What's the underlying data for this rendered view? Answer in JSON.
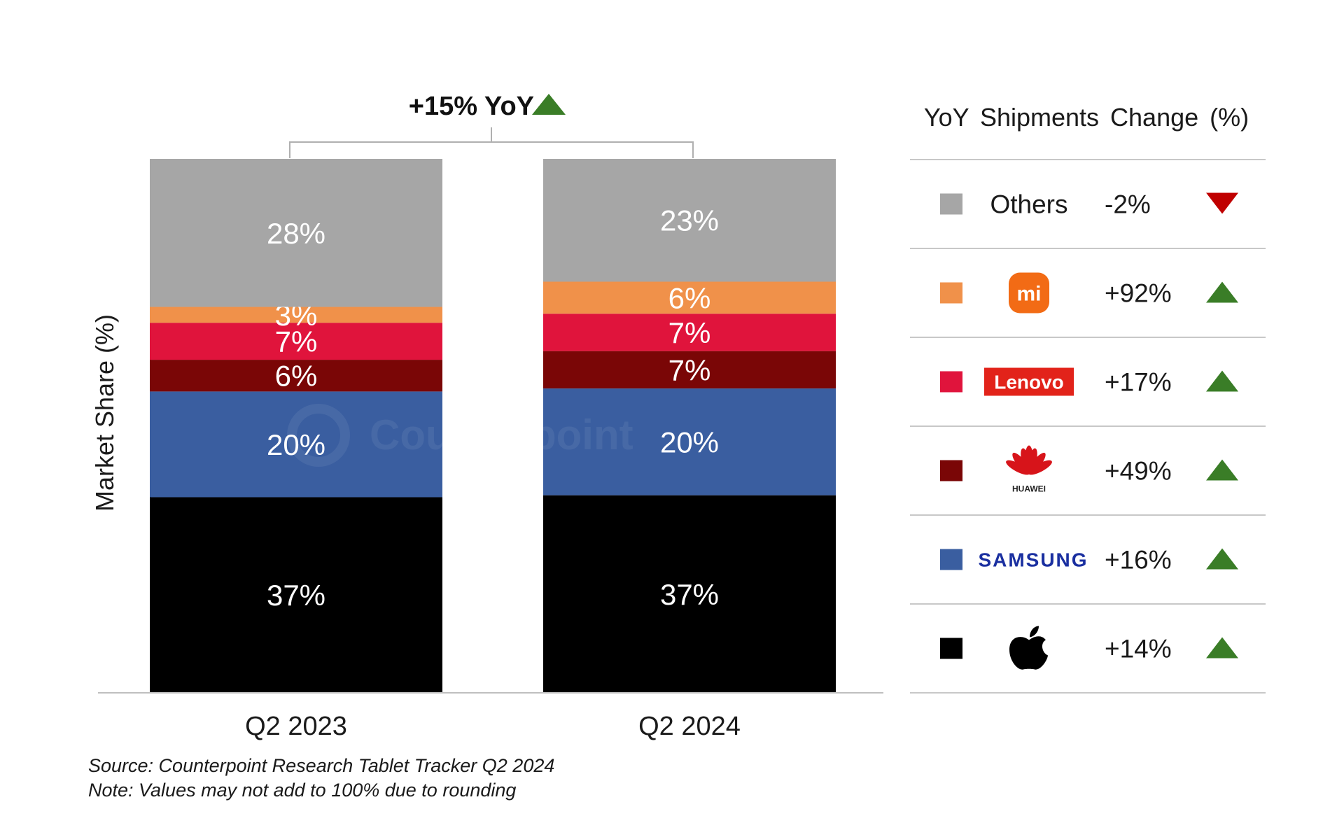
{
  "chart_data": {
    "type": "bar",
    "stacked": true,
    "ylabel": "Market Share (%)",
    "categories": [
      "Q2 2023",
      "Q2 2024"
    ],
    "series": [
      {
        "name": "Apple",
        "values": [
          37,
          37
        ],
        "labels": [
          "37%",
          "37%"
        ]
      },
      {
        "name": "Samsung",
        "values": [
          20,
          20
        ],
        "labels": [
          "20%",
          "20%"
        ]
      },
      {
        "name": "Huawei",
        "values": [
          6,
          7
        ],
        "labels": [
          "6%",
          "7%"
        ]
      },
      {
        "name": "Lenovo",
        "values": [
          7,
          7
        ],
        "labels": [
          "7%",
          "7%"
        ]
      },
      {
        "name": "Xiaomi",
        "values": [
          3,
          6
        ],
        "labels": [
          "3%",
          "6%"
        ]
      },
      {
        "name": "Others",
        "values": [
          28,
          23
        ],
        "labels": [
          "28%",
          "23%"
        ]
      }
    ],
    "annotation": "+15% YoY",
    "legend_placement": "right"
  },
  "colors": {
    "Apple": "#000000",
    "Samsung": "#3a5ea0",
    "Huawei": "#7a0606",
    "Lenovo": "#e0143c",
    "Xiaomi": "#f0914a",
    "Others": "#a6a6a6",
    "up": "#3a7d27",
    "down": "#c00000"
  },
  "legend": {
    "title": "YoY Shipments Change (%)",
    "rows": [
      {
        "brand": "Others",
        "label": "Others",
        "change": "-2%",
        "direction": "down",
        "icon": "others-text"
      },
      {
        "brand": "Xiaomi",
        "label": "mi",
        "change": "+92%",
        "direction": "up",
        "icon": "xiaomi-logo"
      },
      {
        "brand": "Lenovo",
        "label": "Lenovo",
        "change": "+17%",
        "direction": "up",
        "icon": "lenovo-logo"
      },
      {
        "brand": "Huawei",
        "label": "HUAWEI",
        "change": "+49%",
        "direction": "up",
        "icon": "huawei-logo"
      },
      {
        "brand": "Samsung",
        "label": "SAMSUNG",
        "change": "+16%",
        "direction": "up",
        "icon": "samsung-logo"
      },
      {
        "brand": "Apple",
        "label": "",
        "change": "+14%",
        "direction": "up",
        "icon": "apple-logo"
      }
    ]
  },
  "watermark": "Counterpoint",
  "footer": {
    "source": "Source: Counterpoint Research Tablet Tracker Q2 2024",
    "note": "Note: Values may not add to 100% due to rounding"
  }
}
